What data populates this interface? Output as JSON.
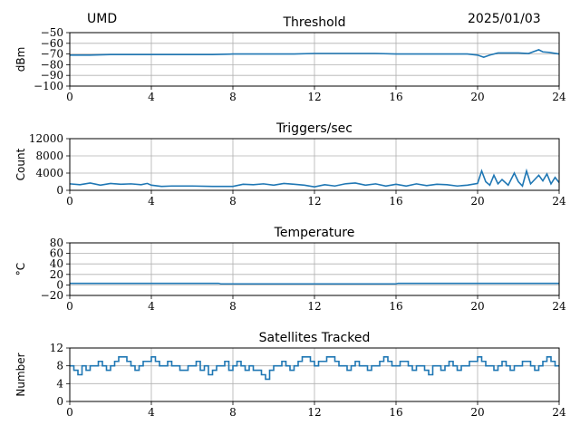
{
  "header": {
    "site": "UMD",
    "date": "2025/01/03"
  },
  "chart_data": [
    {
      "type": "line",
      "title": "Threshold",
      "ylabel": "dBm",
      "x_range": [
        0,
        24
      ],
      "x_ticks": [
        0,
        4,
        8,
        12,
        16,
        20,
        24
      ],
      "ylim": [
        -100,
        -50
      ],
      "y_ticks": [
        -100,
        -90,
        -80,
        -70,
        -60,
        -50
      ],
      "y_tick_labels": [
        "−100",
        "−90",
        "−80",
        "−70",
        "−60",
        "−50"
      ],
      "grid": true,
      "color": "#1f77b4",
      "series": [
        {
          "x": [
            0,
            1,
            2,
            3,
            4,
            5,
            6,
            7,
            8,
            9,
            10,
            11,
            12,
            13,
            14,
            15,
            16,
            17,
            18,
            19,
            19.5,
            20,
            20.3,
            20.6,
            21,
            21.5,
            22,
            22.5,
            23,
            23.2,
            23.5,
            24
          ],
          "y": [
            -71,
            -71,
            -70.5,
            -70.5,
            -70.5,
            -70.5,
            -70.5,
            -70.5,
            -70,
            -70,
            -70,
            -70,
            -69.5,
            -69.5,
            -69.5,
            -69.5,
            -70,
            -70,
            -70,
            -70,
            -70,
            -71,
            -73,
            -71,
            -69,
            -69,
            -69,
            -69.5,
            -66,
            -68,
            -68.5,
            -70
          ]
        }
      ]
    },
    {
      "type": "line",
      "title": "Triggers/sec",
      "ylabel": "Count",
      "x_range": [
        0,
        24
      ],
      "x_ticks": [
        0,
        4,
        8,
        12,
        16,
        20,
        24
      ],
      "ylim": [
        0,
        12000
      ],
      "y_ticks": [
        0,
        4000,
        8000,
        12000
      ],
      "y_tick_labels": [
        "0",
        "4000",
        "8000",
        "12000"
      ],
      "grid": true,
      "color": "#1f77b4",
      "series": [
        {
          "x": [
            0,
            0.5,
            1,
            1.5,
            2,
            2.5,
            3,
            3.5,
            3.8,
            4,
            4.5,
            5,
            6,
            7,
            8,
            8.5,
            9,
            9.5,
            10,
            10.5,
            11,
            11.5,
            12,
            12.5,
            13,
            13.5,
            14,
            14.5,
            15,
            15.5,
            16,
            16.5,
            17,
            17.5,
            18,
            18.5,
            19,
            19.5,
            20,
            20.2,
            20.4,
            20.6,
            20.8,
            21,
            21.2,
            21.5,
            21.8,
            22,
            22.2,
            22.4,
            22.6,
            22.8,
            23,
            23.2,
            23.4,
            23.6,
            23.8,
            24
          ],
          "y": [
            1500,
            1300,
            1700,
            1200,
            1600,
            1400,
            1500,
            1300,
            1600,
            1200,
            900,
            1000,
            1000,
            900,
            900,
            1400,
            1300,
            1500,
            1200,
            1600,
            1400,
            1200,
            800,
            1300,
            1000,
            1500,
            1700,
            1200,
            1500,
            1000,
            1400,
            1000,
            1500,
            1100,
            1400,
            1300,
            1000,
            1200,
            1600,
            4500,
            2000,
            1200,
            3500,
            1500,
            2500,
            1200,
            4000,
            2000,
            1000,
            4500,
            1500,
            2500,
            3500,
            2200,
            3800,
            1500,
            3000,
            1800
          ]
        }
      ]
    },
    {
      "type": "line",
      "title": "Temperature",
      "ylabel": "°C",
      "x_range": [
        0,
        24
      ],
      "x_ticks": [
        0,
        4,
        8,
        12,
        16,
        20,
        24
      ],
      "ylim": [
        -20,
        80
      ],
      "y_ticks": [
        -20,
        0,
        20,
        40,
        60,
        80
      ],
      "y_tick_labels": [
        "−20",
        "0",
        "20",
        "40",
        "60",
        "80"
      ],
      "grid": true,
      "color": "#1f77b4",
      "series": [
        {
          "x": [
            0,
            4,
            7.3,
            7.4,
            12,
            16,
            16.1,
            20,
            24
          ],
          "y": [
            3,
            3,
            3,
            2,
            2,
            2,
            3,
            3,
            3
          ]
        }
      ]
    },
    {
      "type": "line",
      "title": "Satellites Tracked",
      "ylabel": "Number",
      "x_range": [
        0,
        24
      ],
      "x_ticks": [
        0,
        4,
        8,
        12,
        16,
        20,
        24
      ],
      "ylim": [
        0,
        12
      ],
      "y_ticks": [
        0,
        4,
        8,
        12
      ],
      "y_tick_labels": [
        "0",
        "4",
        "8",
        "12"
      ],
      "grid": true,
      "color": "#1f77b4",
      "series": [
        {
          "step": true,
          "x": [
            0,
            0.2,
            0.4,
            0.6,
            0.8,
            1.0,
            1.2,
            1.4,
            1.6,
            1.8,
            2.0,
            2.2,
            2.4,
            2.6,
            2.8,
            3.0,
            3.2,
            3.4,
            3.6,
            3.8,
            4.0,
            4.2,
            4.4,
            4.6,
            4.8,
            5.0,
            5.2,
            5.4,
            5.6,
            5.8,
            6.0,
            6.2,
            6.4,
            6.6,
            6.8,
            7.0,
            7.2,
            7.4,
            7.6,
            7.8,
            8.0,
            8.2,
            8.4,
            8.6,
            8.8,
            9.0,
            9.2,
            9.4,
            9.6,
            9.8,
            10.0,
            10.2,
            10.4,
            10.6,
            10.8,
            11.0,
            11.2,
            11.4,
            11.6,
            11.8,
            12.0,
            12.2,
            12.4,
            12.6,
            12.8,
            13.0,
            13.2,
            13.4,
            13.6,
            13.8,
            14.0,
            14.2,
            14.4,
            14.6,
            14.8,
            15.0,
            15.2,
            15.4,
            15.6,
            15.8,
            16.0,
            16.2,
            16.4,
            16.6,
            16.8,
            17.0,
            17.2,
            17.4,
            17.6,
            17.8,
            18.0,
            18.2,
            18.4,
            18.6,
            18.8,
            19.0,
            19.2,
            19.4,
            19.6,
            19.8,
            20.0,
            20.2,
            20.4,
            20.6,
            20.8,
            21.0,
            21.2,
            21.4,
            21.6,
            21.8,
            22.0,
            22.2,
            22.4,
            22.6,
            22.8,
            23.0,
            23.2,
            23.4,
            23.6,
            23.8,
            24
          ],
          "y": [
            8,
            7,
            6,
            8,
            7,
            8,
            8,
            9,
            8,
            7,
            8,
            9,
            10,
            10,
            9,
            8,
            7,
            8,
            9,
            9,
            10,
            9,
            8,
            8,
            9,
            8,
            8,
            7,
            7,
            8,
            8,
            9,
            7,
            8,
            6,
            7,
            8,
            8,
            9,
            7,
            8,
            9,
            8,
            7,
            8,
            7,
            7,
            6,
            5,
            7,
            8,
            8,
            9,
            8,
            7,
            8,
            9,
            10,
            10,
            9,
            8,
            9,
            9,
            10,
            10,
            9,
            8,
            8,
            7,
            8,
            9,
            8,
            8,
            7,
            8,
            8,
            9,
            10,
            9,
            8,
            8,
            9,
            9,
            8,
            7,
            8,
            8,
            7,
            6,
            8,
            8,
            7,
            8,
            9,
            8,
            7,
            8,
            8,
            9,
            9,
            10,
            9,
            8,
            8,
            7,
            8,
            9,
            8,
            7,
            8,
            8,
            9,
            9,
            8,
            7,
            8,
            9,
            10,
            9,
            8,
            8
          ]
        }
      ]
    }
  ]
}
